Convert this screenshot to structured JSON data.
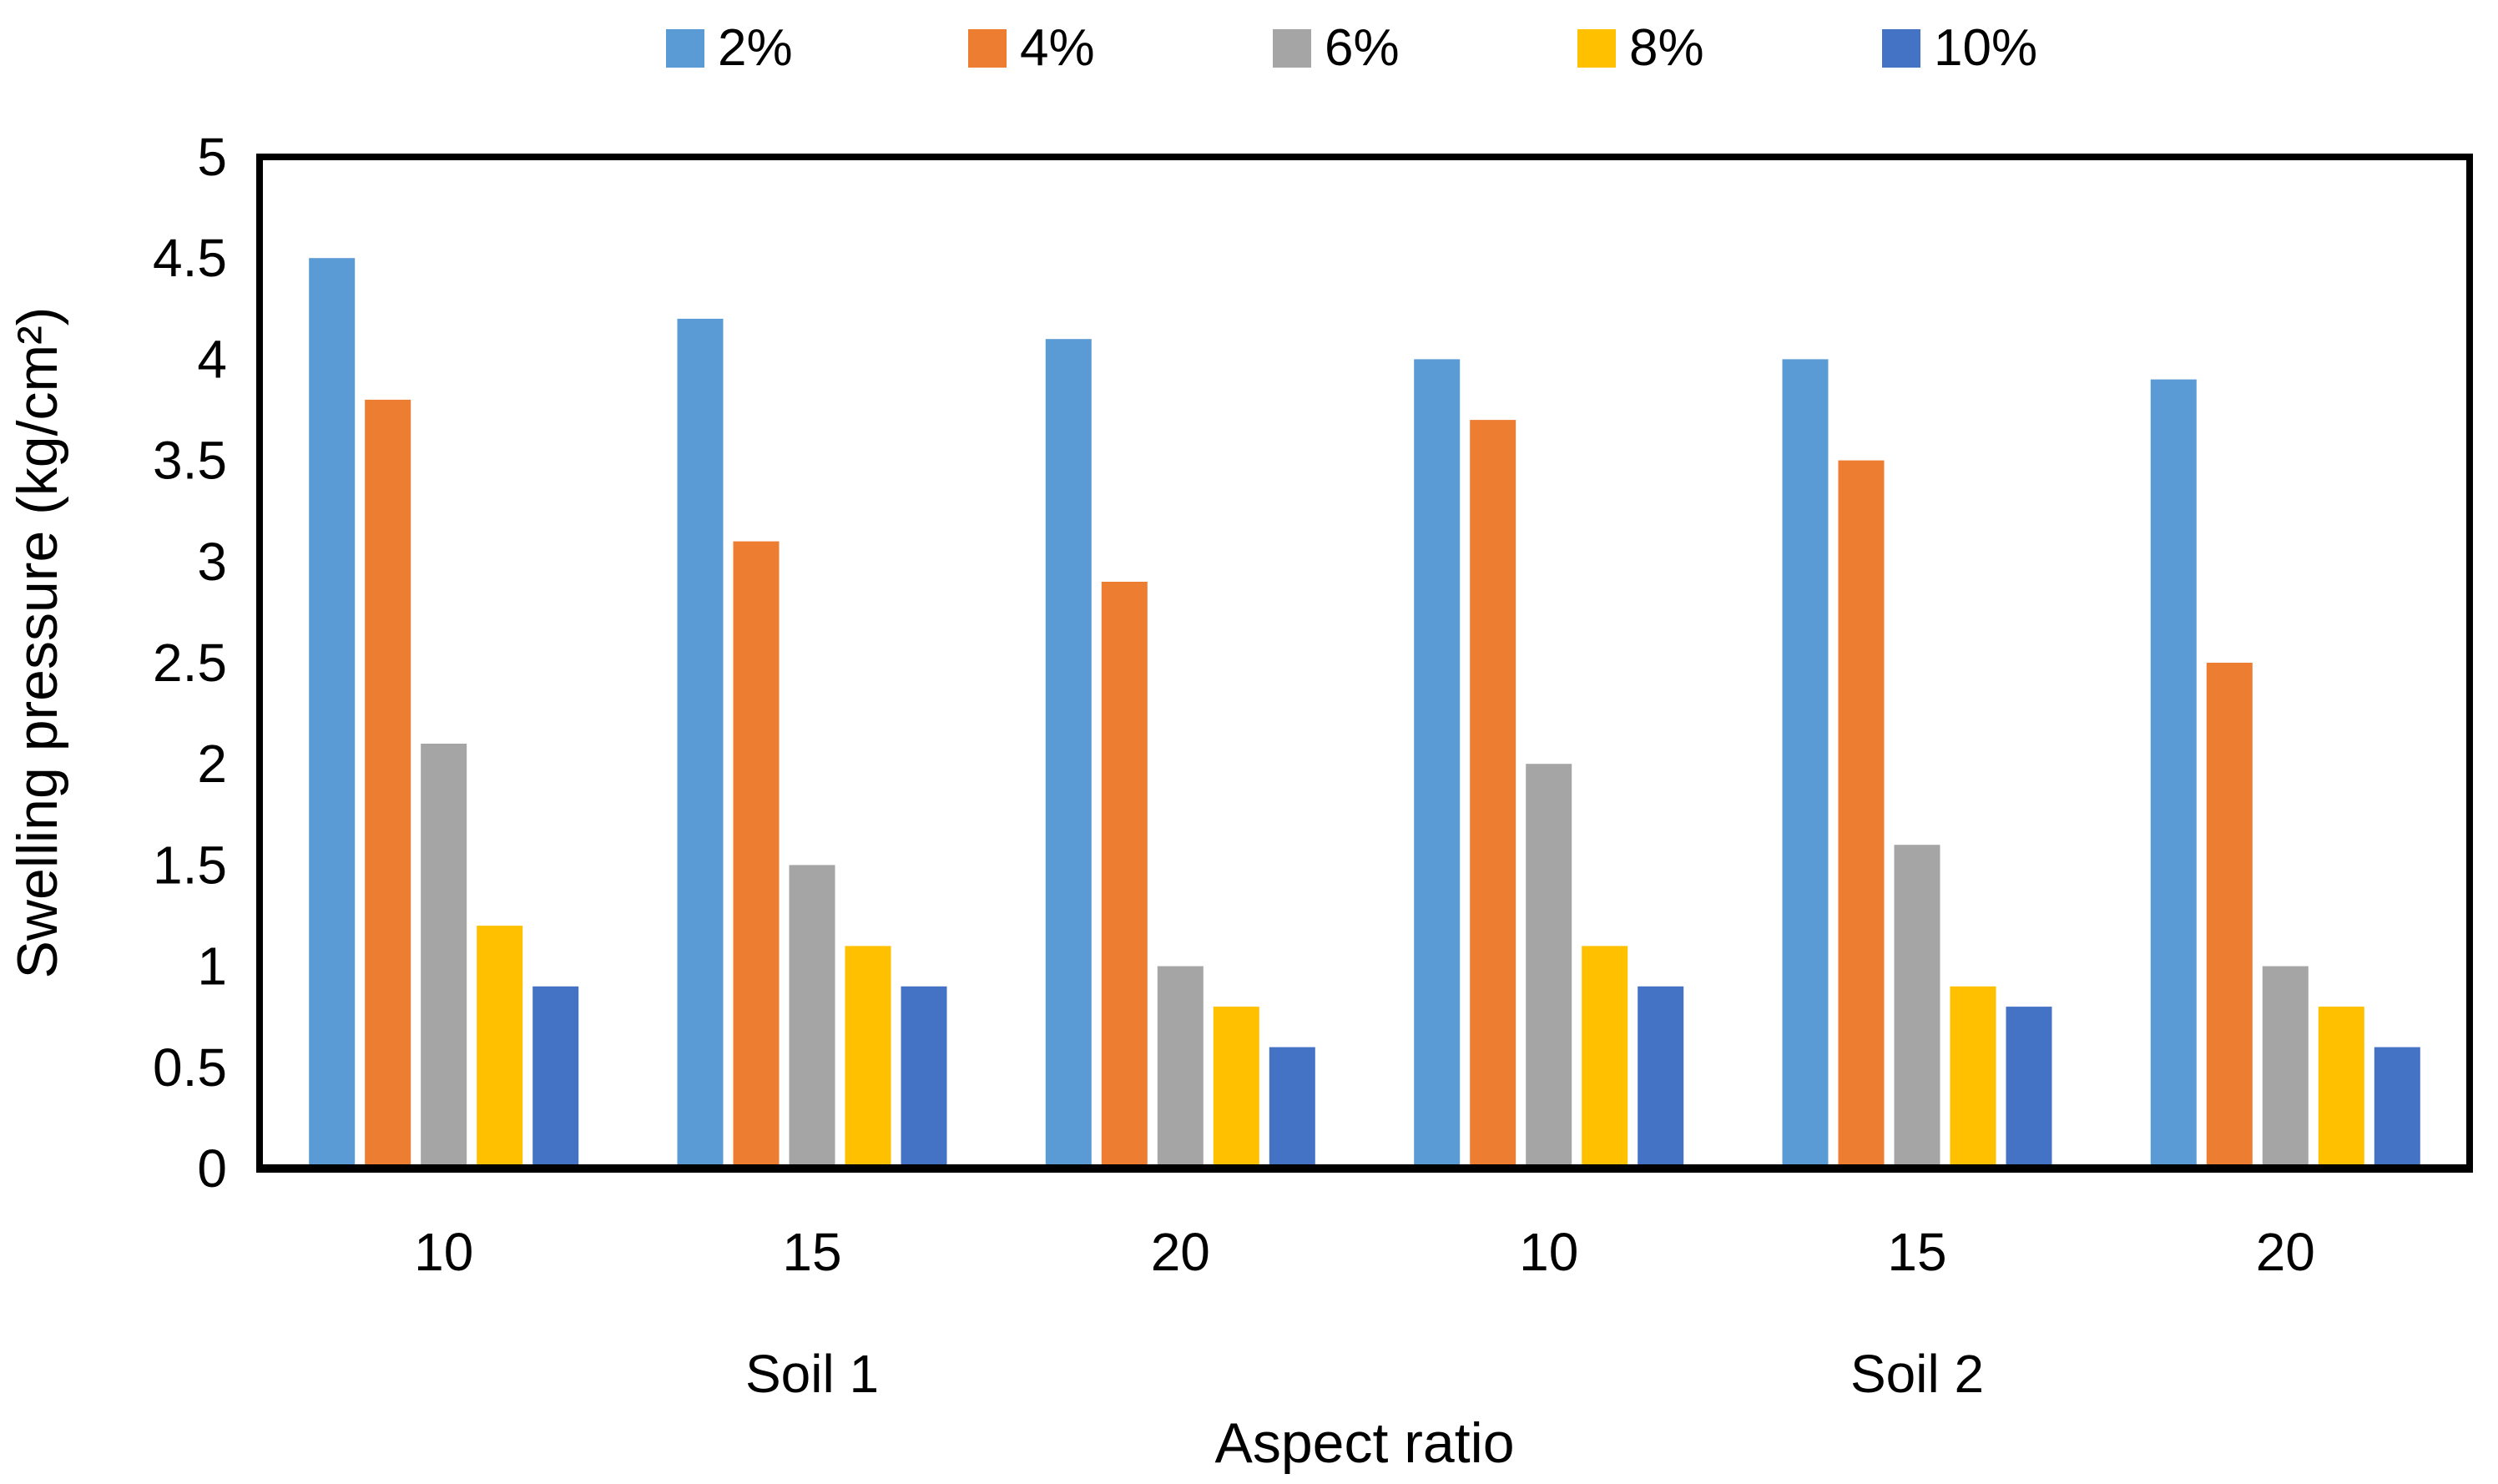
{
  "chart_data": {
    "type": "bar",
    "title": "",
    "xlabel": "Aspect ratio",
    "ylabel": "Swelling pressure (kg/cm²)",
    "ylim": [
      0,
      5
    ],
    "yticks": [
      "0",
      "0.5",
      "1",
      "1.5",
      "2",
      "2.5",
      "3",
      "3.5",
      "4",
      "4.5",
      "5"
    ],
    "grid": false,
    "legend_position": "top",
    "categories": [
      "10",
      "15",
      "20",
      "10",
      "15",
      "20"
    ],
    "category_groups": [
      {
        "label": "Soil 1",
        "start": 0,
        "end": 2
      },
      {
        "label": "Soil 2",
        "start": 3,
        "end": 5
      }
    ],
    "series": [
      {
        "name": "2%",
        "color": "#5B9BD5",
        "values": [
          4.5,
          4.2,
          4.1,
          4.0,
          4.0,
          3.9
        ]
      },
      {
        "name": "4%",
        "color": "#ED7D31",
        "values": [
          3.8,
          3.1,
          2.9,
          3.7,
          3.5,
          2.5
        ]
      },
      {
        "name": "6%",
        "color": "#A5A5A5",
        "values": [
          2.1,
          1.5,
          1.0,
          2.0,
          1.6,
          1.0
        ]
      },
      {
        "name": "8%",
        "color": "#FFC000",
        "values": [
          1.2,
          1.1,
          0.8,
          1.1,
          0.9,
          0.8
        ]
      },
      {
        "name": "10%",
        "color": "#4472C4",
        "values": [
          0.9,
          0.9,
          0.6,
          0.9,
          0.8,
          0.6
        ]
      }
    ],
    "plot_style": {
      "axis_color": "#000000",
      "background": "#FFFFFF"
    }
  }
}
